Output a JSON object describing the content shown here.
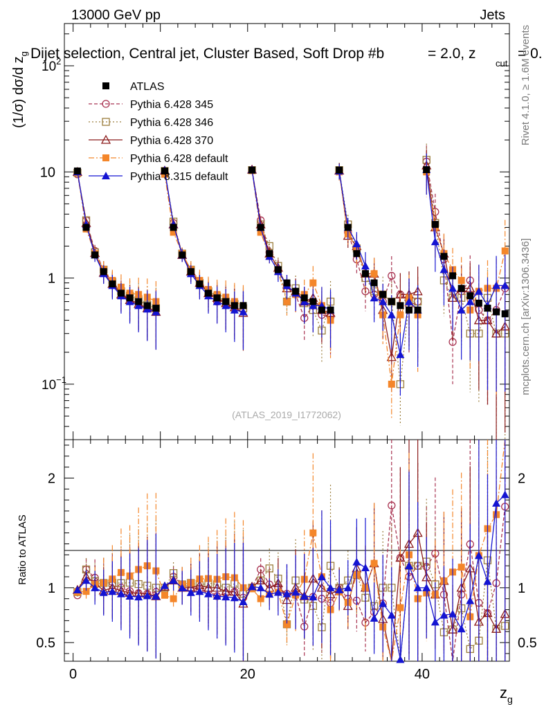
{
  "header": {
    "energy_label": "13000 GeV pp",
    "category_label": "Jets",
    "selection_label": "Dijet selection, Central jet, Cluster Based, Soft Drop #b",
    "eta_label": "= 2.0, z",
    "cut_sub": "cut",
    "cut_tail": "= 0.",
    "side_label_top": "Rivet 4.1.0, ≥ 1.6M events",
    "side_label_bottom": "mcplots.cern.ch [arXiv:1306.3436]",
    "watermark": "(ATLAS_2019_I1772062)"
  },
  "colors": {
    "ATLAS": "#000000",
    "Pythia 6.428 345": "#a83250",
    "Pythia 6.428 346": "#9a7d3c",
    "Pythia 6.428 370": "#8b1a1a",
    "Pythia 6.428 default": "#f4862a",
    "Pythia 8.315 default": "#1414d2"
  },
  "chart_data": {
    "type": "scatter",
    "title": "Dijet selection, Central jet, Cluster Based, Soft Drop",
    "xlabel": "z_g",
    "ylabel": "(1/σ) dσ/d z_g",
    "ratio_ylabel": "Ratio to ATLAS",
    "xlim": [
      -1,
      50
    ],
    "ylim": [
      0.03,
      250
    ],
    "yscale": "log",
    "ratio_ylim": [
      0.33,
      2.35
    ],
    "x_ticks": [
      0,
      20,
      40
    ],
    "y_ticks": [
      "10^-1",
      "1",
      "10",
      "10^2"
    ],
    "ratio_ticks": [
      0.5,
      1,
      2
    ],
    "legend_position": "top-left",
    "x": [
      0.5,
      1.5,
      2.5,
      3.5,
      4.5,
      5.5,
      6.5,
      7.5,
      8.5,
      9.5,
      10.5,
      11.5,
      12.5,
      13.5,
      14.5,
      15.5,
      16.5,
      17.5,
      18.5,
      19.5,
      20.5,
      21.5,
      22.5,
      23.5,
      24.5,
      25.5,
      26.5,
      27.5,
      28.5,
      29.5,
      30.5,
      31.5,
      32.5,
      33.5,
      34.5,
      35.5,
      36.5,
      37.5,
      38.5,
      39.5,
      40.5,
      41.5,
      42.5,
      43.5,
      44.5,
      45.5,
      46.5,
      47.5,
      48.5,
      49.5
    ],
    "series": [
      {
        "name": "ATLAS",
        "values": [
          10.2,
          3.0,
          1.65,
          1.15,
          0.88,
          0.72,
          0.65,
          0.6,
          0.55,
          0.52,
          10.2,
          3.0,
          1.65,
          1.15,
          0.88,
          0.72,
          0.65,
          0.6,
          0.55,
          0.55,
          10.4,
          3.0,
          1.7,
          1.2,
          0.9,
          0.75,
          0.65,
          0.6,
          0.5,
          0.5,
          10.4,
          3.0,
          1.7,
          1.1,
          0.9,
          0.7,
          0.6,
          0.55,
          0.5,
          0.5,
          10.5,
          3.2,
          1.6,
          1.05,
          0.8,
          0.68,
          0.58,
          0.52,
          0.48,
          0.46
        ]
      },
      {
        "name": "Pythia 6.428 345",
        "values": [
          9.5,
          3.5,
          1.8,
          1.2,
          0.9,
          0.72,
          0.63,
          0.57,
          0.52,
          0.5,
          10.0,
          3.3,
          1.7,
          1.15,
          0.86,
          0.7,
          0.6,
          0.57,
          0.53,
          0.5,
          10.4,
          3.5,
          1.75,
          1.2,
          0.85,
          0.7,
          0.42,
          0.55,
          0.45,
          0.43,
          10.4,
          2.7,
          1.5,
          0.75,
          0.7,
          0.6,
          1.05,
          0.7,
          0.55,
          0.6,
          12.5,
          4.2,
          1.5,
          0.25,
          0.75,
          0.95,
          0.5,
          0.4,
          0.5,
          0.8
        ]
      },
      {
        "name": "Pythia 6.428 346",
        "values": [
          9.8,
          3.5,
          1.75,
          1.2,
          0.92,
          0.75,
          0.68,
          0.62,
          0.56,
          0.52,
          10.2,
          3.4,
          1.7,
          1.2,
          0.9,
          0.75,
          0.67,
          0.6,
          0.57,
          0.52,
          10.4,
          3.2,
          2.0,
          1.3,
          0.6,
          0.8,
          0.58,
          0.5,
          0.32,
          0.6,
          10.4,
          3.2,
          1.9,
          1.0,
          0.75,
          0.7,
          0.6,
          0.1,
          0.6,
          0.6,
          13.0,
          3.3,
          0.95,
          0.65,
          0.65,
          0.3,
          0.3,
          0.65,
          0.3,
          0.3
        ]
      },
      {
        "name": "Pythia 6.428 370",
        "values": [
          10.0,
          3.3,
          1.72,
          1.12,
          0.88,
          0.7,
          0.62,
          0.57,
          0.52,
          0.48,
          10.3,
          3.2,
          1.65,
          1.15,
          0.9,
          0.72,
          0.65,
          0.58,
          0.53,
          0.47,
          10.5,
          3.2,
          1.7,
          1.25,
          0.8,
          0.75,
          0.6,
          0.65,
          0.5,
          0.47,
          10.3,
          2.5,
          2.0,
          1.1,
          1.1,
          0.5,
          0.18,
          0.7,
          0.7,
          0.75,
          11.5,
          3.0,
          1.7,
          0.65,
          0.8,
          0.8,
          0.4,
          0.4,
          0.3,
          0.35
        ]
      },
      {
        "name": "Pythia 6.428 default",
        "values": [
          9.8,
          2.9,
          1.7,
          1.2,
          0.95,
          0.82,
          0.72,
          0.7,
          0.66,
          0.6,
          9.5,
          2.7,
          1.7,
          1.2,
          0.95,
          0.78,
          0.7,
          0.66,
          0.6,
          0.55,
          10.3,
          2.7,
          1.6,
          1.15,
          0.6,
          0.7,
          0.7,
          0.9,
          0.55,
          0.4,
          10.0,
          2.6,
          1.9,
          1.1,
          1.1,
          0.45,
          0.1,
          0.45,
          0.65,
          0.45,
          10.0,
          3.0,
          1.7,
          1.2,
          0.95,
          0.5,
          0.75,
          0.8,
          0.8,
          1.8
        ]
      },
      {
        "name": "Pythia 8.315 default",
        "values": [
          10.0,
          3.2,
          1.65,
          1.1,
          0.85,
          0.68,
          0.6,
          0.55,
          0.51,
          0.48,
          10.4,
          3.2,
          1.65,
          1.1,
          0.85,
          0.68,
          0.6,
          0.55,
          0.5,
          0.48,
          10.5,
          3.0,
          1.6,
          1.15,
          0.85,
          0.72,
          0.6,
          0.55,
          0.55,
          0.5,
          10.2,
          3.0,
          2.1,
          1.3,
          0.65,
          0.6,
          0.45,
          0.19,
          0.6,
          0.5,
          10.5,
          2.2,
          1.2,
          0.8,
          0.5,
          0.6,
          0.75,
          0.55,
          0.85,
          0.85
        ]
      }
    ]
  }
}
